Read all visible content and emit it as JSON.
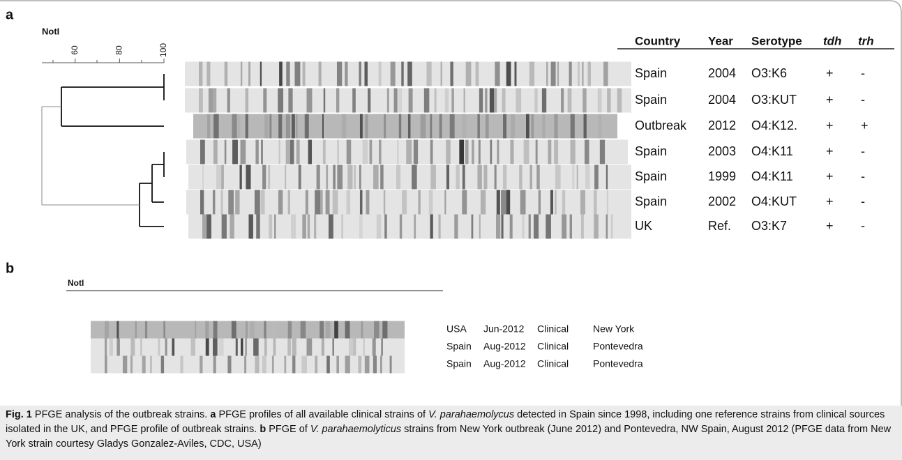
{
  "panel_a": {
    "label": "a",
    "enzyme": "NotI",
    "scale_lim": [
      45,
      100
    ],
    "scale_ticks": [
      60,
      80,
      100
    ],
    "columns": [
      "Country",
      "Year",
      "Serotype",
      "tdh",
      "trh"
    ],
    "rows": [
      [
        "Spain",
        "2004",
        "O3:K6",
        "+",
        "-"
      ],
      [
        "Spain",
        "2004",
        "O3:KUT",
        "+",
        "-"
      ],
      [
        "Outbreak",
        "2012",
        "O4:K12.",
        "+",
        "+"
      ],
      [
        "Spain",
        "2003",
        "O4:K11",
        "+",
        "-"
      ],
      [
        "Spain",
        "1999",
        "O4:K11",
        "+",
        "-"
      ],
      [
        "Spain",
        "2002",
        "O4:KUT",
        "+",
        "-"
      ],
      [
        "UK",
        "Ref.",
        "O3:K7",
        "+",
        "-"
      ]
    ]
  },
  "panel_b": {
    "label": "b",
    "enzyme": "NotI",
    "rows": [
      [
        "USA",
        "Jun-2012",
        "Clinical",
        "New York"
      ],
      [
        "Spain",
        "Aug-2012",
        "Clinical",
        "Pontevedra"
      ],
      [
        "Spain",
        "Aug-2012",
        "Clinical",
        "Pontevedra"
      ]
    ]
  },
  "caption": {
    "label": "Fig. 1",
    "segments": [
      " PFGE analysis of the outbreak strains. ",
      "a",
      " PFGE profiles of all available clinical strains of ",
      "V. parahaemolycus",
      " detected in Spain since 1998, including one reference strains from clinical sources isolated in the UK, and PFGE profile of outbreak strains. ",
      "b",
      " PFGE of ",
      "V. parahaemolyticus",
      " strains from New York outbreak (June 2012) and Pontevedra, NW Spain, August 2012 (PFGE data from New York strain courtesy Gladys Gonzalez-Aviles, CDC, USA)"
    ]
  }
}
